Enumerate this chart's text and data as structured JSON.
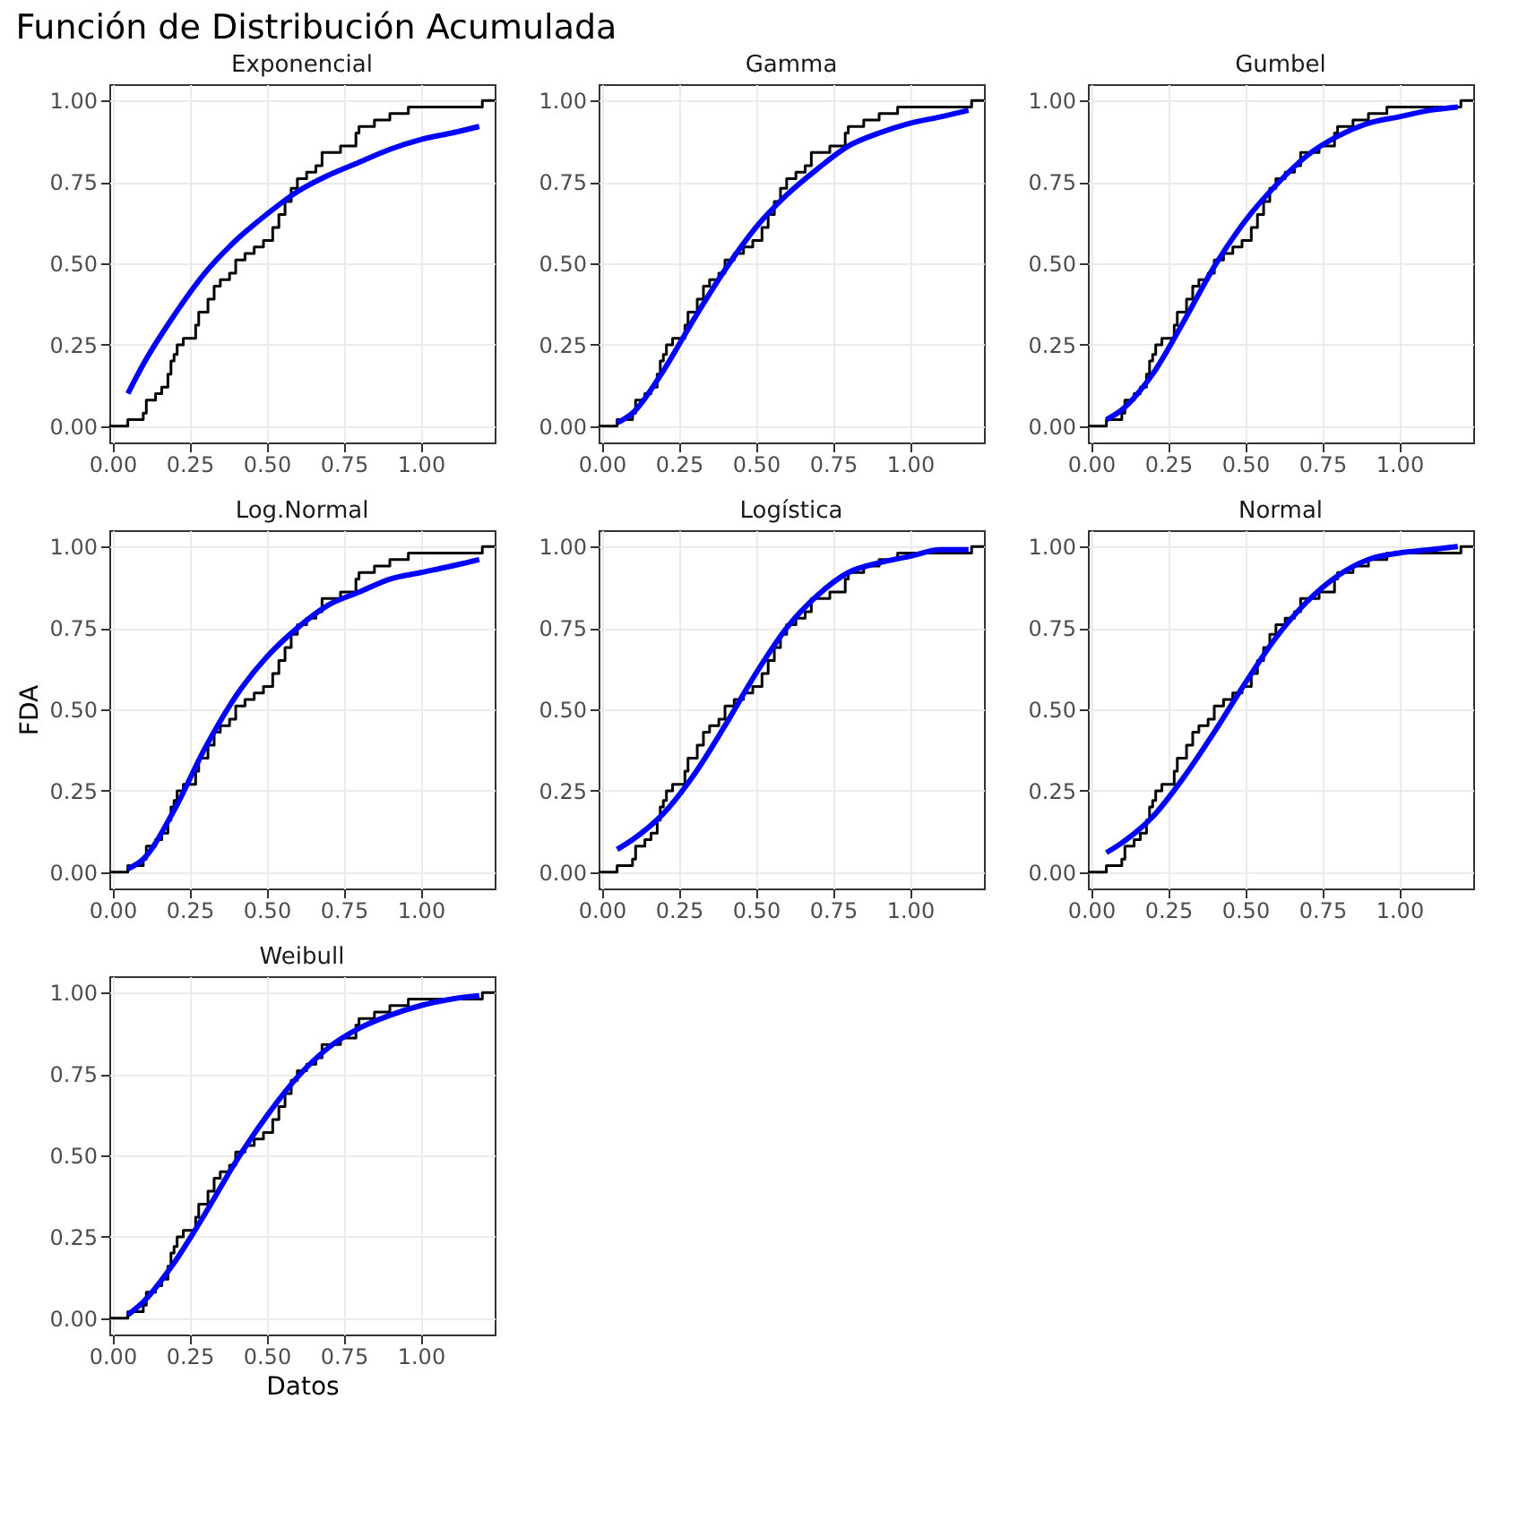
{
  "chart_data": [
    {
      "type": "line",
      "title": "Exponencial",
      "annotations": [
        "Función de Distribución Acumulada"
      ],
      "xlim": [
        -0.01,
        1.24
      ],
      "ylim": [
        -0.05,
        1.05
      ],
      "xticks": [
        {
          "value": 0,
          "label": "0.00"
        },
        {
          "value": 0.25,
          "label": "0.25"
        },
        {
          "value": 0.5,
          "label": "0.50"
        },
        {
          "value": 0.75,
          "label": "0.75"
        },
        {
          "value": 1,
          "label": "1.00"
        }
      ],
      "yticks": [
        {
          "value": 0,
          "label": "0.00"
        },
        {
          "value": 0.25,
          "label": "0.25"
        },
        {
          "value": 0.5,
          "label": "0.50"
        },
        {
          "value": 0.75,
          "label": "0.75"
        },
        {
          "value": 1,
          "label": "1.00"
        }
      ],
      "grid": true,
      "series": [
        {
          "type": "step",
          "color": "#000000",
          "x": [
            -0.01,
            0.05,
            0.1,
            0.11,
            0.14,
            0.16,
            0.18,
            0.19,
            0.2,
            0.21,
            0.23,
            0.27,
            0.28,
            0.31,
            0.33,
            0.35,
            0.38,
            0.4,
            0.43,
            0.46,
            0.49,
            0.52,
            0.54,
            0.56,
            0.58,
            0.6,
            0.63,
            0.66,
            0.68,
            0.74,
            0.79,
            0.8,
            0.85,
            0.9,
            0.96,
            1.2,
            1.24
          ],
          "values": [
            0,
            0.02,
            0.04,
            0.08,
            0.1,
            0.12,
            0.16,
            0.2,
            0.22,
            0.25,
            0.27,
            0.31,
            0.35,
            0.39,
            0.43,
            0.45,
            0.47,
            0.51,
            0.53,
            0.55,
            0.57,
            0.61,
            0.65,
            0.69,
            0.73,
            0.76,
            0.78,
            0.8,
            0.84,
            0.86,
            0.9,
            0.92,
            0.94,
            0.96,
            0.98,
            1,
            1
          ]
        },
        {
          "color": "#0000ff",
          "x": [
            0.05,
            0.1,
            0.2,
            0.3,
            0.4,
            0.5,
            0.6,
            0.7,
            0.8,
            0.9,
            1.0,
            1.1,
            1.19
          ],
          "values": [
            0.1,
            0.19,
            0.34,
            0.47,
            0.57,
            0.65,
            0.72,
            0.77,
            0.81,
            0.85,
            0.88,
            0.9,
            0.92
          ]
        }
      ]
    },
    {
      "type": "line",
      "title": "Gamma",
      "xlim": [
        -0.01,
        1.24
      ],
      "ylim": [
        -0.05,
        1.05
      ],
      "xticks": [
        {
          "value": 0,
          "label": "0.00"
        },
        {
          "value": 0.25,
          "label": "0.25"
        },
        {
          "value": 0.5,
          "label": "0.50"
        },
        {
          "value": 0.75,
          "label": "0.75"
        },
        {
          "value": 1,
          "label": "1.00"
        }
      ],
      "yticks": [
        {
          "value": 0,
          "label": "0.00"
        },
        {
          "value": 0.25,
          "label": "0.25"
        },
        {
          "value": 0.5,
          "label": "0.50"
        },
        {
          "value": 0.75,
          "label": "0.75"
        },
        {
          "value": 1,
          "label": "1.00"
        }
      ],
      "grid": true,
      "series": [
        {
          "type": "step",
          "color": "#000000",
          "x": [
            -0.01,
            0.05,
            0.1,
            0.11,
            0.14,
            0.16,
            0.18,
            0.19,
            0.2,
            0.21,
            0.23,
            0.27,
            0.28,
            0.31,
            0.33,
            0.35,
            0.38,
            0.4,
            0.43,
            0.46,
            0.49,
            0.52,
            0.54,
            0.56,
            0.58,
            0.6,
            0.63,
            0.66,
            0.68,
            0.74,
            0.79,
            0.8,
            0.85,
            0.9,
            0.96,
            1.2,
            1.24
          ],
          "values": [
            0,
            0.02,
            0.04,
            0.08,
            0.1,
            0.12,
            0.16,
            0.2,
            0.22,
            0.25,
            0.27,
            0.31,
            0.35,
            0.39,
            0.43,
            0.45,
            0.47,
            0.51,
            0.53,
            0.55,
            0.57,
            0.61,
            0.65,
            0.69,
            0.73,
            0.76,
            0.78,
            0.8,
            0.84,
            0.86,
            0.9,
            0.92,
            0.94,
            0.96,
            0.98,
            1,
            1
          ]
        },
        {
          "color": "#0000ff",
          "x": [
            0.05,
            0.1,
            0.2,
            0.3,
            0.4,
            0.5,
            0.6,
            0.7,
            0.8,
            0.9,
            1.0,
            1.1,
            1.19
          ],
          "values": [
            0.01,
            0.04,
            0.17,
            0.33,
            0.48,
            0.61,
            0.71,
            0.79,
            0.86,
            0.9,
            0.93,
            0.95,
            0.97
          ]
        }
      ]
    },
    {
      "type": "line",
      "title": "Gumbel",
      "xlim": [
        -0.01,
        1.24
      ],
      "ylim": [
        -0.05,
        1.05
      ],
      "xticks": [
        {
          "value": 0,
          "label": "0.00"
        },
        {
          "value": 0.25,
          "label": "0.25"
        },
        {
          "value": 0.5,
          "label": "0.50"
        },
        {
          "value": 0.75,
          "label": "0.75"
        },
        {
          "value": 1,
          "label": "1.00"
        }
      ],
      "yticks": [
        {
          "value": 0,
          "label": "0.00"
        },
        {
          "value": 0.25,
          "label": "0.25"
        },
        {
          "value": 0.5,
          "label": "0.50"
        },
        {
          "value": 0.75,
          "label": "0.75"
        },
        {
          "value": 1,
          "label": "1.00"
        }
      ],
      "grid": true,
      "series": [
        {
          "type": "step",
          "color": "#000000",
          "x": [
            -0.01,
            0.05,
            0.1,
            0.11,
            0.14,
            0.16,
            0.18,
            0.19,
            0.2,
            0.21,
            0.23,
            0.27,
            0.28,
            0.31,
            0.33,
            0.35,
            0.38,
            0.4,
            0.43,
            0.46,
            0.49,
            0.52,
            0.54,
            0.56,
            0.58,
            0.6,
            0.63,
            0.66,
            0.68,
            0.74,
            0.79,
            0.8,
            0.85,
            0.9,
            0.96,
            1.2,
            1.24
          ],
          "values": [
            0,
            0.02,
            0.04,
            0.08,
            0.1,
            0.12,
            0.16,
            0.2,
            0.22,
            0.25,
            0.27,
            0.31,
            0.35,
            0.39,
            0.43,
            0.45,
            0.47,
            0.51,
            0.53,
            0.55,
            0.57,
            0.61,
            0.65,
            0.69,
            0.73,
            0.76,
            0.78,
            0.8,
            0.84,
            0.86,
            0.9,
            0.92,
            0.94,
            0.96,
            0.98,
            1,
            1
          ]
        },
        {
          "color": "#0000ff",
          "x": [
            0.05,
            0.1,
            0.2,
            0.3,
            0.4,
            0.5,
            0.6,
            0.7,
            0.8,
            0.9,
            1.0,
            1.1,
            1.19
          ],
          "values": [
            0.02,
            0.05,
            0.16,
            0.32,
            0.49,
            0.63,
            0.74,
            0.83,
            0.89,
            0.93,
            0.95,
            0.97,
            0.98
          ]
        }
      ]
    },
    {
      "type": "line",
      "title": "Log.Normal",
      "ylabel": "FDA",
      "xlim": [
        -0.01,
        1.24
      ],
      "ylim": [
        -0.05,
        1.05
      ],
      "xticks": [
        {
          "value": 0,
          "label": "0.00"
        },
        {
          "value": 0.25,
          "label": "0.25"
        },
        {
          "value": 0.5,
          "label": "0.50"
        },
        {
          "value": 0.75,
          "label": "0.75"
        },
        {
          "value": 1,
          "label": "1.00"
        }
      ],
      "yticks": [
        {
          "value": 0,
          "label": "0.00"
        },
        {
          "value": 0.25,
          "label": "0.25"
        },
        {
          "value": 0.5,
          "label": "0.50"
        },
        {
          "value": 0.75,
          "label": "0.75"
        },
        {
          "value": 1,
          "label": "1.00"
        }
      ],
      "grid": true,
      "series": [
        {
          "type": "step",
          "color": "#000000",
          "x": [
            -0.01,
            0.05,
            0.1,
            0.11,
            0.14,
            0.16,
            0.18,
            0.19,
            0.2,
            0.21,
            0.23,
            0.27,
            0.28,
            0.31,
            0.33,
            0.35,
            0.38,
            0.4,
            0.43,
            0.46,
            0.49,
            0.52,
            0.54,
            0.56,
            0.58,
            0.6,
            0.63,
            0.66,
            0.68,
            0.74,
            0.79,
            0.8,
            0.85,
            0.9,
            0.96,
            1.2,
            1.24
          ],
          "values": [
            0,
            0.02,
            0.04,
            0.08,
            0.1,
            0.12,
            0.16,
            0.2,
            0.22,
            0.25,
            0.27,
            0.31,
            0.35,
            0.39,
            0.43,
            0.45,
            0.47,
            0.51,
            0.53,
            0.55,
            0.57,
            0.61,
            0.65,
            0.69,
            0.73,
            0.76,
            0.78,
            0.8,
            0.84,
            0.86,
            0.9,
            0.92,
            0.94,
            0.96,
            0.98,
            1,
            1
          ]
        },
        {
          "color": "#0000ff",
          "x": [
            0.05,
            0.1,
            0.2,
            0.3,
            0.4,
            0.5,
            0.6,
            0.7,
            0.8,
            0.9,
            1.0,
            1.1,
            1.19
          ],
          "values": [
            0.01,
            0.04,
            0.19,
            0.38,
            0.54,
            0.66,
            0.75,
            0.82,
            0.86,
            0.9,
            0.92,
            0.94,
            0.96
          ]
        }
      ]
    },
    {
      "type": "line",
      "title": "Logística",
      "xlim": [
        -0.01,
        1.24
      ],
      "ylim": [
        -0.05,
        1.05
      ],
      "xticks": [
        {
          "value": 0,
          "label": "0.00"
        },
        {
          "value": 0.25,
          "label": "0.25"
        },
        {
          "value": 0.5,
          "label": "0.50"
        },
        {
          "value": 0.75,
          "label": "0.75"
        },
        {
          "value": 1,
          "label": "1.00"
        }
      ],
      "yticks": [
        {
          "value": 0,
          "label": "0.00"
        },
        {
          "value": 0.25,
          "label": "0.25"
        },
        {
          "value": 0.5,
          "label": "0.50"
        },
        {
          "value": 0.75,
          "label": "0.75"
        },
        {
          "value": 1,
          "label": "1.00"
        }
      ],
      "grid": true,
      "series": [
        {
          "type": "step",
          "color": "#000000",
          "x": [
            -0.01,
            0.05,
            0.1,
            0.11,
            0.14,
            0.16,
            0.18,
            0.19,
            0.2,
            0.21,
            0.23,
            0.27,
            0.28,
            0.31,
            0.33,
            0.35,
            0.38,
            0.4,
            0.43,
            0.46,
            0.49,
            0.52,
            0.54,
            0.56,
            0.58,
            0.6,
            0.63,
            0.66,
            0.68,
            0.74,
            0.79,
            0.8,
            0.85,
            0.9,
            0.96,
            1.2,
            1.24
          ],
          "values": [
            0,
            0.02,
            0.04,
            0.08,
            0.1,
            0.12,
            0.16,
            0.2,
            0.22,
            0.25,
            0.27,
            0.31,
            0.35,
            0.39,
            0.43,
            0.45,
            0.47,
            0.51,
            0.53,
            0.55,
            0.57,
            0.61,
            0.65,
            0.69,
            0.73,
            0.76,
            0.78,
            0.8,
            0.84,
            0.86,
            0.9,
            0.92,
            0.94,
            0.96,
            0.98,
            1,
            1
          ]
        },
        {
          "color": "#0000ff",
          "x": [
            0.05,
            0.1,
            0.2,
            0.3,
            0.4,
            0.5,
            0.6,
            0.7,
            0.8,
            0.9,
            1.0,
            1.1,
            1.19
          ],
          "values": [
            0.07,
            0.1,
            0.18,
            0.3,
            0.45,
            0.61,
            0.75,
            0.85,
            0.92,
            0.95,
            0.97,
            0.99,
            0.99
          ]
        }
      ]
    },
    {
      "type": "line",
      "title": "Normal",
      "xlim": [
        -0.01,
        1.24
      ],
      "ylim": [
        -0.05,
        1.05
      ],
      "xticks": [
        {
          "value": 0,
          "label": "0.00"
        },
        {
          "value": 0.25,
          "label": "0.25"
        },
        {
          "value": 0.5,
          "label": "0.50"
        },
        {
          "value": 0.75,
          "label": "0.75"
        },
        {
          "value": 1,
          "label": "1.00"
        }
      ],
      "yticks": [
        {
          "value": 0,
          "label": "0.00"
        },
        {
          "value": 0.25,
          "label": "0.25"
        },
        {
          "value": 0.5,
          "label": "0.50"
        },
        {
          "value": 0.75,
          "label": "0.75"
        },
        {
          "value": 1,
          "label": "1.00"
        }
      ],
      "grid": true,
      "series": [
        {
          "type": "step",
          "color": "#000000",
          "x": [
            -0.01,
            0.05,
            0.1,
            0.11,
            0.14,
            0.16,
            0.18,
            0.19,
            0.2,
            0.21,
            0.23,
            0.27,
            0.28,
            0.31,
            0.33,
            0.35,
            0.38,
            0.4,
            0.43,
            0.46,
            0.49,
            0.52,
            0.54,
            0.56,
            0.58,
            0.6,
            0.63,
            0.66,
            0.68,
            0.74,
            0.79,
            0.8,
            0.85,
            0.9,
            0.96,
            1.2,
            1.24
          ],
          "values": [
            0,
            0.02,
            0.04,
            0.08,
            0.1,
            0.12,
            0.16,
            0.2,
            0.22,
            0.25,
            0.27,
            0.31,
            0.35,
            0.39,
            0.43,
            0.45,
            0.47,
            0.51,
            0.53,
            0.55,
            0.57,
            0.61,
            0.65,
            0.69,
            0.73,
            0.76,
            0.78,
            0.8,
            0.84,
            0.86,
            0.9,
            0.92,
            0.94,
            0.96,
            0.98,
            1,
            1
          ]
        },
        {
          "color": "#0000ff",
          "x": [
            0.05,
            0.1,
            0.2,
            0.3,
            0.4,
            0.5,
            0.6,
            0.7,
            0.8,
            0.9,
            1.0,
            1.1,
            1.19
          ],
          "values": [
            0.06,
            0.09,
            0.17,
            0.29,
            0.43,
            0.58,
            0.72,
            0.83,
            0.91,
            0.96,
            0.98,
            0.99,
            1.0
          ]
        }
      ]
    },
    {
      "type": "line",
      "title": "Weibull",
      "xlabel": "Datos",
      "xlim": [
        -0.01,
        1.24
      ],
      "ylim": [
        -0.05,
        1.05
      ],
      "xticks": [
        {
          "value": 0,
          "label": "0.00"
        },
        {
          "value": 0.25,
          "label": "0.25"
        },
        {
          "value": 0.5,
          "label": "0.50"
        },
        {
          "value": 0.75,
          "label": "0.75"
        },
        {
          "value": 1,
          "label": "1.00"
        }
      ],
      "yticks": [
        {
          "value": 0,
          "label": "0.00"
        },
        {
          "value": 0.25,
          "label": "0.25"
        },
        {
          "value": 0.5,
          "label": "0.50"
        },
        {
          "value": 0.75,
          "label": "0.75"
        },
        {
          "value": 1,
          "label": "1.00"
        }
      ],
      "grid": true,
      "series": [
        {
          "type": "step",
          "color": "#000000",
          "x": [
            -0.01,
            0.05,
            0.1,
            0.11,
            0.14,
            0.16,
            0.18,
            0.19,
            0.2,
            0.21,
            0.23,
            0.27,
            0.28,
            0.31,
            0.33,
            0.35,
            0.38,
            0.4,
            0.43,
            0.46,
            0.49,
            0.52,
            0.54,
            0.56,
            0.58,
            0.6,
            0.63,
            0.66,
            0.68,
            0.74,
            0.79,
            0.8,
            0.85,
            0.9,
            0.96,
            1.2,
            1.24
          ],
          "values": [
            0,
            0.02,
            0.04,
            0.08,
            0.1,
            0.12,
            0.16,
            0.2,
            0.22,
            0.25,
            0.27,
            0.31,
            0.35,
            0.39,
            0.43,
            0.45,
            0.47,
            0.51,
            0.53,
            0.55,
            0.57,
            0.61,
            0.65,
            0.69,
            0.73,
            0.76,
            0.78,
            0.8,
            0.84,
            0.86,
            0.9,
            0.92,
            0.94,
            0.96,
            0.98,
            1,
            1
          ]
        },
        {
          "color": "#0000ff",
          "x": [
            0.05,
            0.1,
            0.2,
            0.3,
            0.4,
            0.5,
            0.6,
            0.7,
            0.8,
            0.9,
            1.0,
            1.1,
            1.19
          ],
          "values": [
            0.01,
            0.05,
            0.17,
            0.32,
            0.48,
            0.62,
            0.74,
            0.83,
            0.89,
            0.93,
            0.96,
            0.98,
            0.99
          ]
        }
      ]
    }
  ]
}
